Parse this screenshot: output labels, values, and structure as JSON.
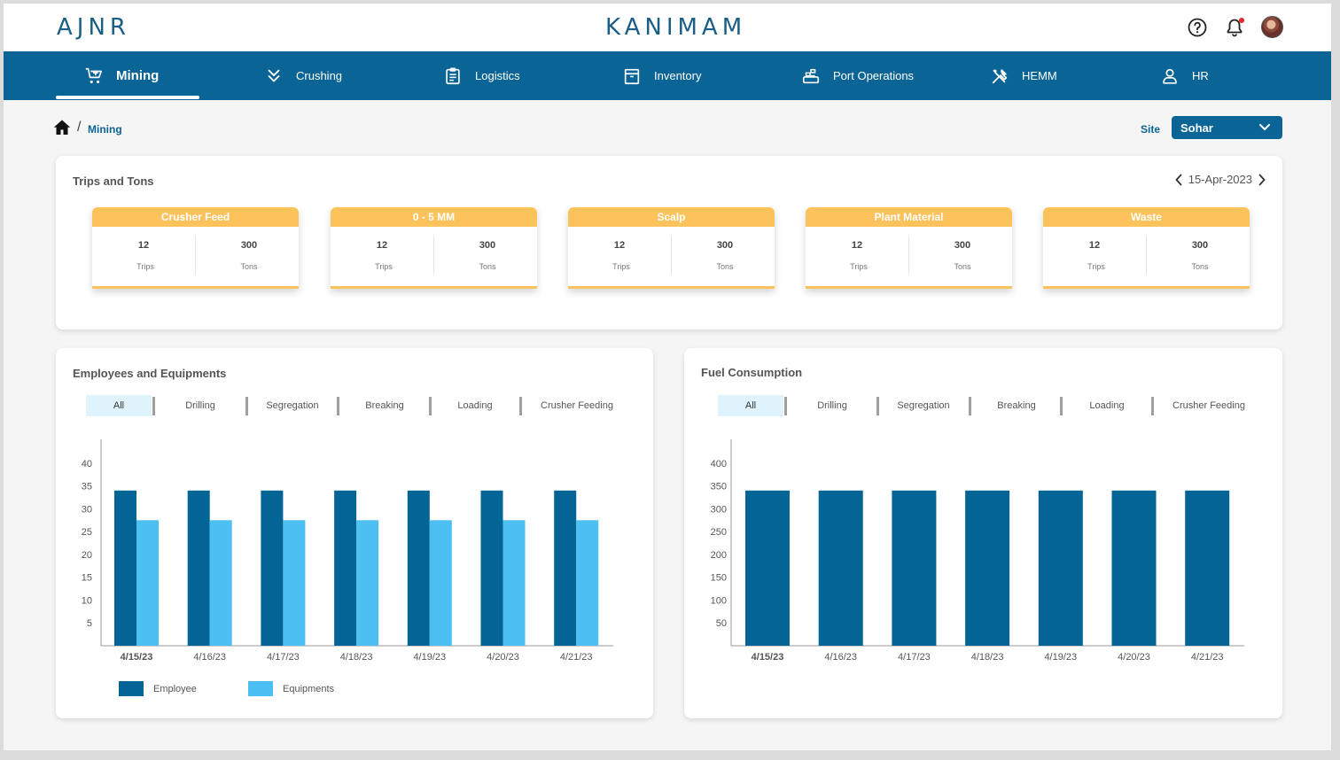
{
  "header": {
    "brand_left": "AJNR",
    "brand_center": "KANIMAM",
    "icons": [
      "help-icon",
      "bell-icon",
      "avatar"
    ],
    "colors": {
      "brand": "#1b5f86",
      "nav": "#0a6496",
      "accent": "#fcc35c",
      "notification": "#e4262f"
    }
  },
  "nav": {
    "items": [
      {
        "label": "Mining",
        "icon": "cart-icon",
        "active": true
      },
      {
        "label": "Crushing",
        "icon": "double-chevron-down-icon",
        "active": false
      },
      {
        "label": "Logistics",
        "icon": "clipboard-icon",
        "active": false
      },
      {
        "label": "Inventory",
        "icon": "archive-box-icon",
        "active": false
      },
      {
        "label": "Port Operations",
        "icon": "port-icon",
        "active": false
      },
      {
        "label": "HEMM",
        "icon": "tools-icon",
        "active": false
      },
      {
        "label": "HR",
        "icon": "user-icon",
        "active": false
      }
    ]
  },
  "breadcrumb": {
    "separator": "/",
    "current": "Mining"
  },
  "site": {
    "label": "Site",
    "selected": "Sohar"
  },
  "trips_tons": {
    "title": "Trips and Tons",
    "date": "15-Apr-2023",
    "tiles": [
      {
        "title": "Crusher Feed",
        "trips": "12",
        "trips_label": "Trips",
        "tons": "300",
        "tons_label": "Tons"
      },
      {
        "title": "0 - 5 MM",
        "trips": "12",
        "trips_label": "Trips",
        "tons": "300",
        "tons_label": "Tons"
      },
      {
        "title": "Scalp",
        "trips": "12",
        "trips_label": "Trips",
        "tons": "300",
        "tons_label": "Tons"
      },
      {
        "title": "Plant Material",
        "trips": "12",
        "trips_label": "Trips",
        "tons": "300",
        "tons_label": "Tons"
      },
      {
        "title": "Waste",
        "trips": "12",
        "trips_label": "Trips",
        "tons": "300",
        "tons_label": "Tons"
      }
    ]
  },
  "employees": {
    "title": "Employees and Equipments",
    "filters": [
      "All",
      "Drilling",
      "Segregation",
      "Breaking",
      "Loading",
      "Crusher Feeding"
    ],
    "active_filter": "All",
    "legend": [
      "Employee",
      "Equipments"
    ]
  },
  "fuel": {
    "title": "Fuel Consumption",
    "filters": [
      "All",
      "Drilling",
      "Segregation",
      "Breaking",
      "Loading",
      "Crusher Feeding"
    ],
    "active_filter": "All"
  },
  "chart_data": [
    {
      "type": "bar",
      "title": "Employees and Equipments",
      "categories": [
        "4/15/23",
        "4/16/23",
        "4/17/23",
        "4/18/23",
        "4/19/23",
        "4/20/23",
        "4/21/23"
      ],
      "series": [
        {
          "name": "Employee",
          "values": [
            34,
            34,
            34,
            34,
            34,
            34,
            34
          ],
          "color": "#036496"
        },
        {
          "name": "Equipments",
          "values": [
            27.5,
            27.5,
            27.5,
            27.5,
            27.5,
            27.5,
            27.5
          ],
          "color": "#4cc0f2"
        }
      ],
      "yticks": [
        5,
        10,
        15,
        20,
        25,
        30,
        35,
        40
      ],
      "ylim": [
        0,
        42.5
      ],
      "legend": "bottom-left",
      "grid": false
    },
    {
      "type": "bar",
      "title": "Fuel Consumption",
      "categories": [
        "4/15/23",
        "4/16/23",
        "4/17/23",
        "4/18/23",
        "4/19/23",
        "4/20/23",
        "4/21/23"
      ],
      "series": [
        {
          "values": [
            340,
            340,
            340,
            340,
            340,
            340,
            340
          ],
          "color": "#036496"
        }
      ],
      "yticks": [
        50,
        100,
        150,
        200,
        250,
        300,
        350,
        400
      ],
      "ylim": [
        0,
        425
      ],
      "grid": false
    }
  ]
}
